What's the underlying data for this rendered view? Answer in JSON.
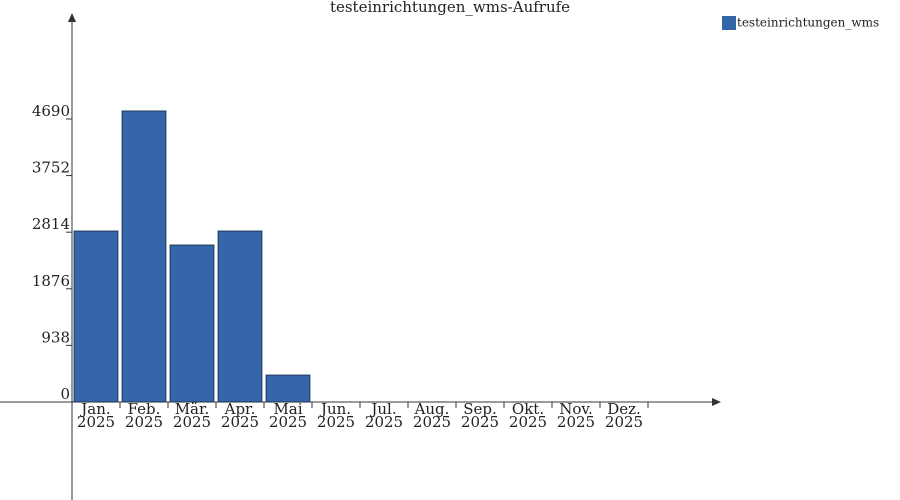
{
  "chart_data": {
    "type": "bar",
    "title": "testeinrichtungen_wms-Aufrufe",
    "categories": [
      "Jan. 2025",
      "Feb. 2025",
      "Mär. 2025",
      "Apr. 2025",
      "Mai 2025",
      "Jun. 2025",
      "Jul. 2025",
      "Aug. 2025",
      "Sep. 2025",
      "Okt. 2025",
      "Nov. 2025",
      "Dez. 2025"
    ],
    "series": [
      {
        "name": "testeinrichtungen_wms",
        "color": "#3465a8",
        "values": [
          2834,
          4823,
          2602,
          2834,
          447,
          null,
          null,
          null,
          null,
          null,
          null,
          null
        ]
      }
    ],
    "ylim": [
      0,
      6413
    ],
    "yticks": [
      0,
      938,
      1876,
      2814,
      3752,
      4690
    ],
    "legend": "top-right"
  }
}
